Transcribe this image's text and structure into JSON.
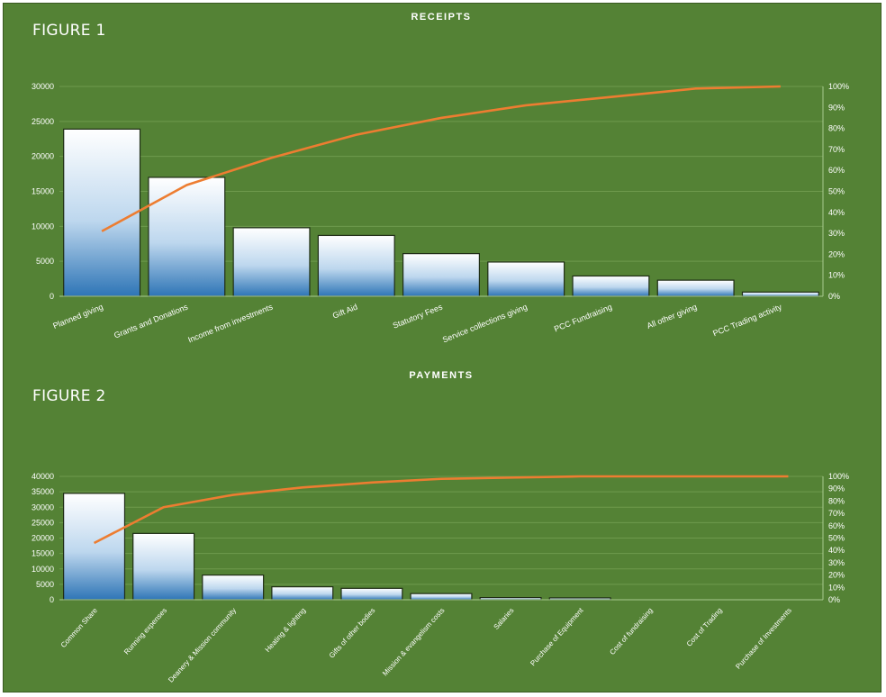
{
  "figures": [
    {
      "label": "FIGURE 1"
    },
    {
      "label": "FIGURE 2"
    }
  ],
  "chart_data": [
    {
      "type": "bar",
      "title": "RECEIPTS",
      "categories": [
        "Planned giving",
        "Grants and Donations",
        "Income from investments",
        "Gift Aid",
        "Statutory Fees",
        "Service collections giving",
        "PCC Fundraising",
        "All other giving",
        "PCC Trading activity"
      ],
      "series": [
        {
          "kind": "bar",
          "values": [
            23900,
            17000,
            9800,
            8700,
            6100,
            4900,
            2900,
            2300,
            600
          ]
        },
        {
          "kind": "line",
          "axis": "right",
          "values": [
            31,
            53,
            66,
            77,
            85,
            91,
            95,
            99,
            100
          ]
        }
      ],
      "ylim": [
        0,
        30000
      ],
      "yticks": [
        "0",
        "5000",
        "10000",
        "15000",
        "20000",
        "25000",
        "30000"
      ],
      "y2lim": [
        0,
        100
      ],
      "y2ticks": [
        "0%",
        "10%",
        "20%",
        "30%",
        "40%",
        "50%",
        "60%",
        "70%",
        "80%",
        "90%",
        "100%"
      ],
      "grid": true,
      "legend": "none"
    },
    {
      "type": "bar",
      "title": "PAYMENTS",
      "categories": [
        "Common Share",
        "Running expenses",
        "Deanery & Mission community",
        "Heating & lighting",
        "Gifts of other bodies",
        "Mission & evangelism costs",
        "Salaries",
        "Purchase of Equipment",
        "Cost of fundraising",
        "Cost of Trading",
        "Purchase of Investments"
      ],
      "series": [
        {
          "kind": "bar",
          "values": [
            34500,
            21500,
            8000,
            4200,
            3700,
            2000,
            700,
            600,
            0,
            0,
            0
          ]
        },
        {
          "kind": "line",
          "axis": "right",
          "values": [
            46,
            75,
            85,
            91,
            95,
            98,
            99,
            100,
            100,
            100,
            100
          ]
        }
      ],
      "ylim": [
        0,
        40000
      ],
      "yticks": [
        "0",
        "5000",
        "10000",
        "15000",
        "20000",
        "25000",
        "30000",
        "35000",
        "40000"
      ],
      "y2lim": [
        0,
        100
      ],
      "y2ticks": [
        "0%",
        "10%",
        "20%",
        "30%",
        "40%",
        "50%",
        "60%",
        "70%",
        "80%",
        "90%",
        "100%"
      ],
      "grid": true,
      "legend": "none"
    }
  ],
  "colors": {
    "background": "#548235",
    "bar_top": "#ffffff",
    "bar_bottom": "#2e75b6",
    "line": "#ed7d31",
    "text": "#ffffff"
  }
}
